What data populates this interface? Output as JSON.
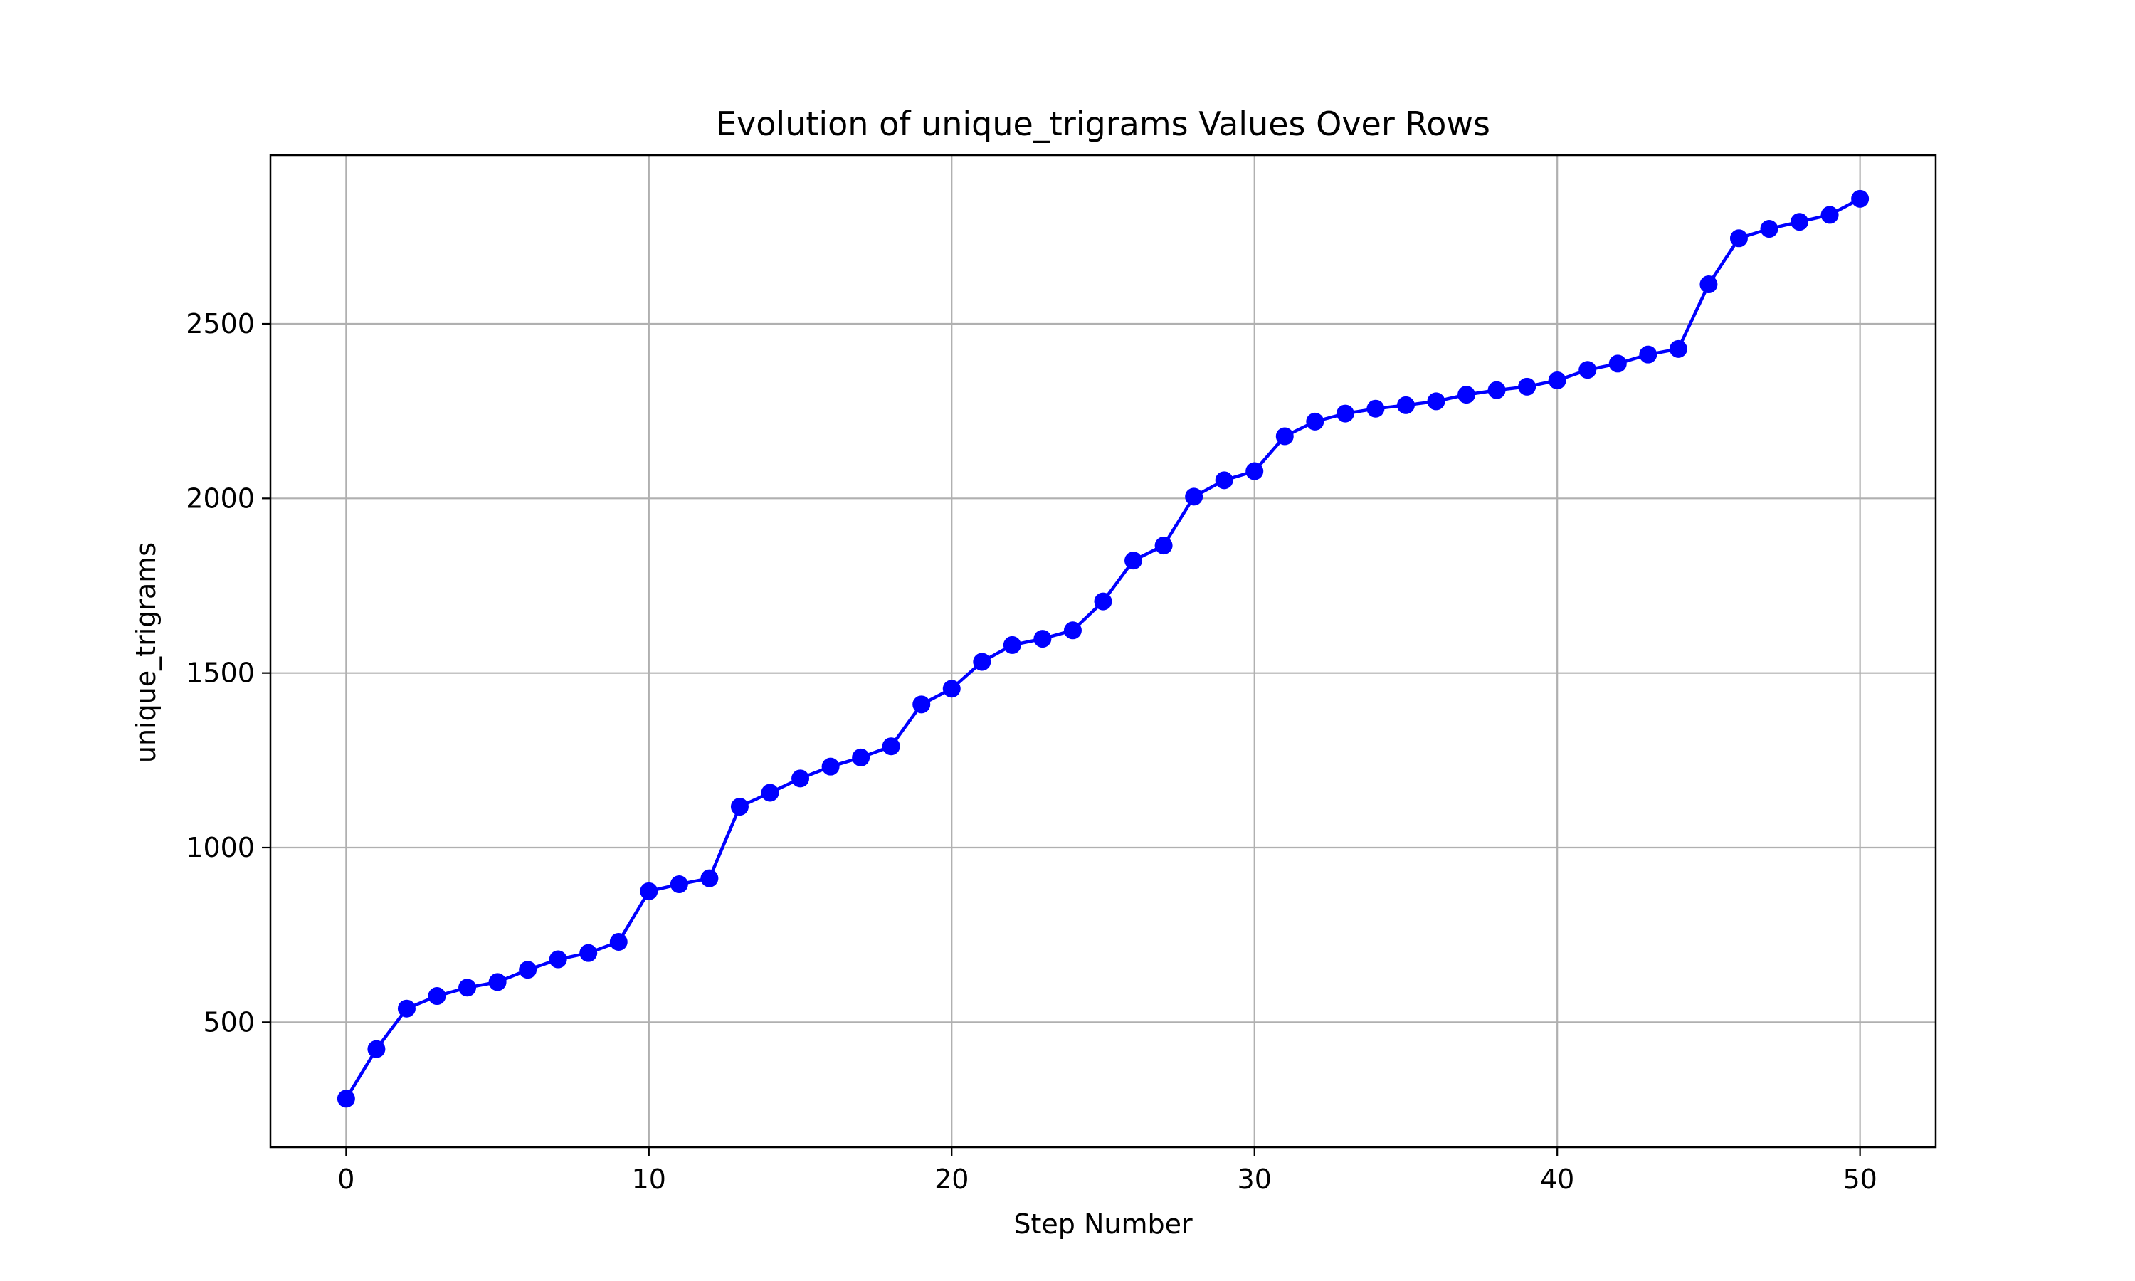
{
  "chart_data": {
    "type": "line",
    "title": "Evolution of unique_trigrams Values Over Rows",
    "xlabel": "Step Number",
    "ylabel": "unique_trigrams",
    "xlim": [
      -2.5,
      52.5
    ],
    "ylim": [
      142,
      2983
    ],
    "xticks": [
      0,
      10,
      20,
      30,
      40,
      50
    ],
    "yticks": [
      500,
      1000,
      1500,
      2000,
      2500
    ],
    "grid": true,
    "legend": "none",
    "series": [
      {
        "color": "#0000ff",
        "marker": "circle",
        "x": [
          0,
          1,
          2,
          3,
          4,
          5,
          6,
          7,
          8,
          9,
          10,
          11,
          12,
          13,
          14,
          15,
          16,
          17,
          18,
          19,
          20,
          21,
          22,
          23,
          24,
          25,
          26,
          27,
          28,
          29,
          30,
          31,
          32,
          33,
          34,
          35,
          36,
          37,
          38,
          39,
          40,
          41,
          42,
          43,
          44,
          45,
          46,
          47,
          48,
          49,
          50
        ],
        "values": [
          281,
          423,
          539,
          575,
          599,
          615,
          650,
          680,
          698,
          730,
          875,
          895,
          912,
          1117,
          1157,
          1198,
          1232,
          1258,
          1290,
          1410,
          1455,
          1532,
          1580,
          1598,
          1622,
          1705,
          1822,
          1865,
          2005,
          2052,
          2078,
          2178,
          2220,
          2243,
          2257,
          2267,
          2278,
          2297,
          2310,
          2320,
          2338,
          2368,
          2386,
          2412,
          2428,
          2613,
          2745,
          2772,
          2792,
          2812,
          2858
        ]
      }
    ]
  }
}
